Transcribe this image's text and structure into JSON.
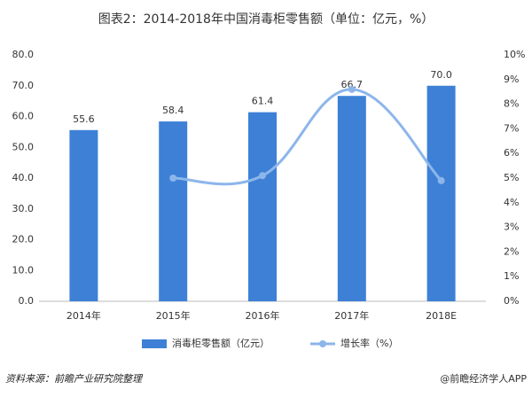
{
  "chart_data": {
    "type": "bar",
    "title": "图表2：2014-2018年中国消毒柜零售额（单位：亿元，%）",
    "categories": [
      "2014年",
      "2015年",
      "2016年",
      "2017年",
      "2018E"
    ],
    "series": [
      {
        "name": "消毒柜零售额（亿元）",
        "color": "#3d80d6",
        "type": "bar",
        "values": [
          55.6,
          58.4,
          61.4,
          66.7,
          70.0
        ],
        "value_labels": [
          "55.6",
          "58.4",
          "61.4",
          "66.7",
          "70.0"
        ]
      },
      {
        "name": "增长率（%）",
        "color": "#8cb6ea",
        "type": "line",
        "axis": "y2",
        "values": [
          null,
          5.0,
          5.1,
          8.6,
          4.9
        ]
      }
    ],
    "ylim": [
      0,
      80
    ],
    "yticks": [
      {
        "value": 0,
        "label": "0.0"
      },
      {
        "value": 10,
        "label": "10.0"
      },
      {
        "value": 20,
        "label": "20.0"
      },
      {
        "value": 30,
        "label": "30.0"
      },
      {
        "value": 40,
        "label": "40.0"
      },
      {
        "value": 50,
        "label": "50.0"
      },
      {
        "value": 60,
        "label": "60.0"
      },
      {
        "value": 70,
        "label": "70.0"
      },
      {
        "value": 80,
        "label": "80.0"
      }
    ],
    "y2lim": [
      0,
      10
    ],
    "y2ticks": [
      {
        "value": 0,
        "label": "0%"
      },
      {
        "value": 1,
        "label": "1%"
      },
      {
        "value": 2,
        "label": "2%"
      },
      {
        "value": 3,
        "label": "3%"
      },
      {
        "value": 4,
        "label": "4%"
      },
      {
        "value": 5,
        "label": "5%"
      },
      {
        "value": 6,
        "label": "6%"
      },
      {
        "value": 7,
        "label": "7%"
      },
      {
        "value": 8,
        "label": "8%"
      },
      {
        "value": 9,
        "label": "9%"
      },
      {
        "value": 10,
        "label": "10%"
      }
    ],
    "source": "资料来源：前瞻产业研究院整理",
    "credit": "@前瞻经济学人APP"
  }
}
